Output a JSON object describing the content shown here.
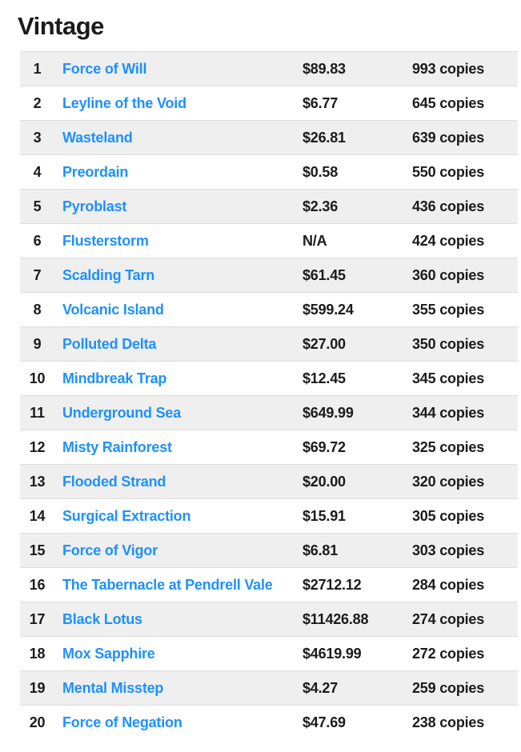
{
  "title": "Vintage",
  "colors": {
    "link": "#1e90ff",
    "row_alt_bg": "#efefef",
    "row_border": "#dcdcdc",
    "text": "#1b1b1b"
  },
  "rows": [
    {
      "rank": "1",
      "name": "Force of Will",
      "price": "$89.83",
      "copies": "993 copies"
    },
    {
      "rank": "2",
      "name": "Leyline of the Void",
      "price": "$6.77",
      "copies": "645 copies"
    },
    {
      "rank": "3",
      "name": "Wasteland",
      "price": "$26.81",
      "copies": "639 copies"
    },
    {
      "rank": "4",
      "name": "Preordain",
      "price": "$0.58",
      "copies": "550 copies"
    },
    {
      "rank": "5",
      "name": "Pyroblast",
      "price": "$2.36",
      "copies": "436 copies"
    },
    {
      "rank": "6",
      "name": "Flusterstorm",
      "price": "N/A",
      "copies": "424 copies"
    },
    {
      "rank": "7",
      "name": "Scalding Tarn",
      "price": "$61.45",
      "copies": "360 copies"
    },
    {
      "rank": "8",
      "name": "Volcanic Island",
      "price": "$599.24",
      "copies": "355 copies"
    },
    {
      "rank": "9",
      "name": "Polluted Delta",
      "price": "$27.00",
      "copies": "350 copies"
    },
    {
      "rank": "10",
      "name": "Mindbreak Trap",
      "price": "$12.45",
      "copies": "345 copies"
    },
    {
      "rank": "11",
      "name": "Underground Sea",
      "price": "$649.99",
      "copies": "344 copies"
    },
    {
      "rank": "12",
      "name": "Misty Rainforest",
      "price": "$69.72",
      "copies": "325 copies"
    },
    {
      "rank": "13",
      "name": "Flooded Strand",
      "price": "$20.00",
      "copies": "320 copies"
    },
    {
      "rank": "14",
      "name": "Surgical Extraction",
      "price": "$15.91",
      "copies": "305 copies"
    },
    {
      "rank": "15",
      "name": "Force of Vigor",
      "price": "$6.81",
      "copies": "303 copies"
    },
    {
      "rank": "16",
      "name": "The Tabernacle at Pendrell Vale",
      "price": "$2712.12",
      "copies": "284 copies"
    },
    {
      "rank": "17",
      "name": "Black Lotus",
      "price": "$11426.88",
      "copies": "274 copies"
    },
    {
      "rank": "18",
      "name": "Mox Sapphire",
      "price": "$4619.99",
      "copies": "272 copies"
    },
    {
      "rank": "19",
      "name": "Mental Misstep",
      "price": "$4.27",
      "copies": "259 copies"
    },
    {
      "rank": "20",
      "name": "Force of Negation",
      "price": "$47.69",
      "copies": "238 copies"
    }
  ]
}
